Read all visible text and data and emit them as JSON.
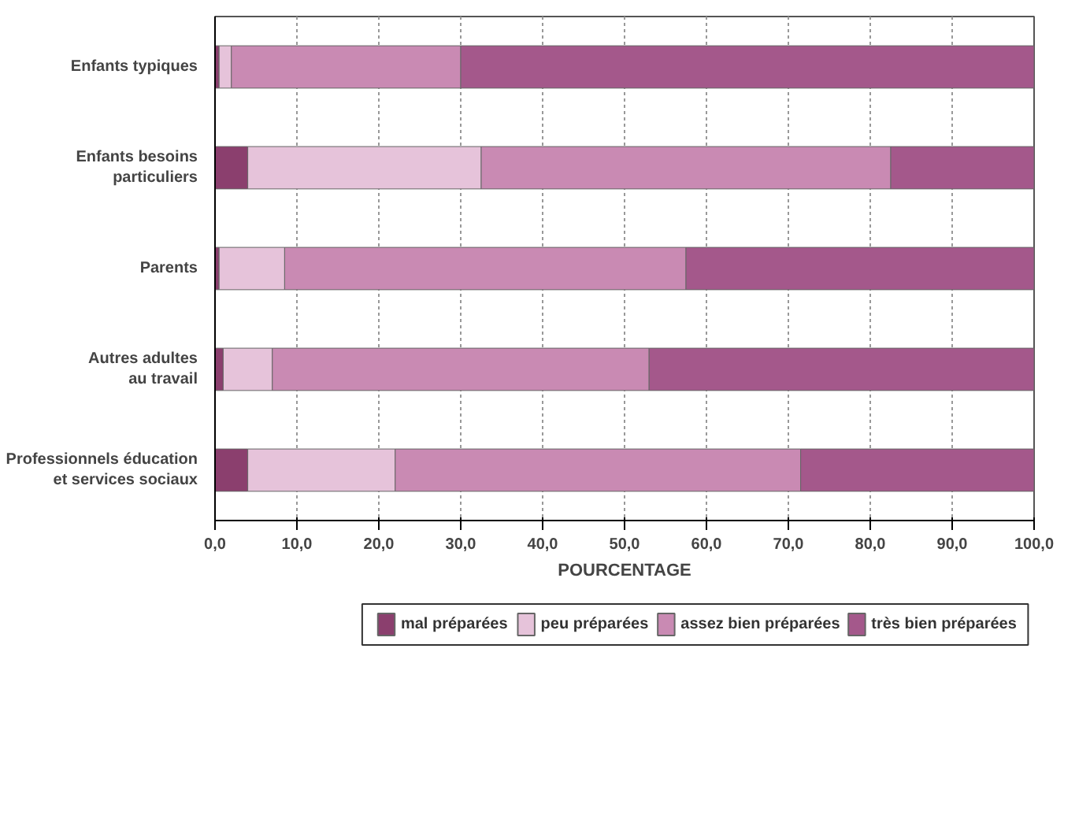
{
  "chart_data": {
    "type": "bar",
    "orientation": "horizontal",
    "stacked": true,
    "categories": [
      "Enfants typiques",
      "Enfants besoins particuliers",
      "Parents",
      "Autres adultes au travail",
      "Professionnels éducation et services sociaux"
    ],
    "series": [
      {
        "name": "mal préparées",
        "color": "#8b3f6e",
        "values": [
          0.5,
          4,
          0.5,
          1,
          4
        ]
      },
      {
        "name": "peu préparées",
        "color": "#e6c3da",
        "values": [
          1.5,
          28.5,
          8,
          6,
          18
        ]
      },
      {
        "name": "assez bien préparées",
        "color": "#c98ab3",
        "values": [
          28,
          50,
          49,
          46,
          49.5
        ]
      },
      {
        "name": "très bien préparées",
        "color": "#a4588b",
        "values": [
          70,
          17.5,
          42.5,
          47,
          28.5
        ]
      }
    ],
    "xlim": [
      0,
      100
    ],
    "xticks": [
      {
        "value": 0,
        "label": "0,0"
      },
      {
        "value": 10,
        "label": "10,0"
      },
      {
        "value": 20,
        "label": "20,0"
      },
      {
        "value": 30,
        "label": "30,0"
      },
      {
        "value": 40,
        "label": "40,0"
      },
      {
        "value": 50,
        "label": "50,0"
      },
      {
        "value": 60,
        "label": "60,0"
      },
      {
        "value": 70,
        "label": "70,0"
      },
      {
        "value": 80,
        "label": "80,0"
      },
      {
        "value": 90,
        "label": "90,0"
      },
      {
        "value": 100,
        "label": "100,0"
      }
    ],
    "xlabel": "POURCENTAGE",
    "grid": "x",
    "legend": "bottom"
  }
}
